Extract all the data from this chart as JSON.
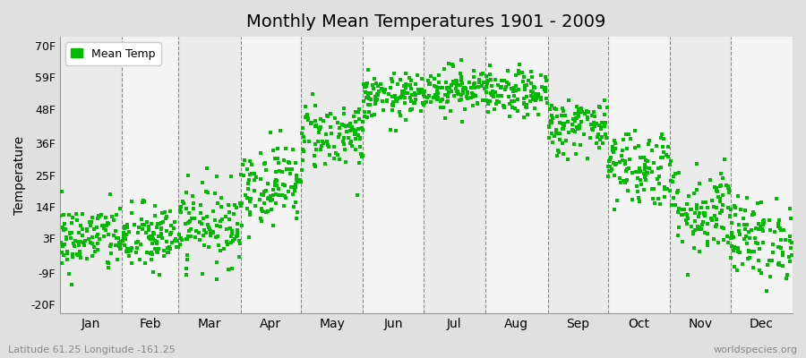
{
  "title": "Monthly Mean Temperatures 1901 - 2009",
  "ylabel": "Temperature",
  "xlabel_labels": [
    "Jan",
    "Feb",
    "Mar",
    "Apr",
    "May",
    "Jun",
    "Jul",
    "Aug",
    "Sep",
    "Oct",
    "Nov",
    "Dec"
  ],
  "ytick_labels": [
    "-20F",
    "-9F",
    "3F",
    "14F",
    "25F",
    "36F",
    "48F",
    "59F",
    "70F"
  ],
  "ytick_values": [
    -20,
    -9,
    3,
    14,
    25,
    36,
    48,
    59,
    70
  ],
  "ylim": [
    -23,
    73
  ],
  "dot_color": "#00BB00",
  "bg_color": "#E0E0E0",
  "plot_bg_color": "#F0F0F0",
  "legend_label": "Mean Temp",
  "footer_left": "Latitude 61.25 Longitude -161.25",
  "footer_right": "worldspecies.org",
  "month_means": [
    3,
    3,
    8,
    22,
    39,
    52,
    55,
    53,
    42,
    28,
    13,
    3
  ],
  "month_stds": [
    6,
    6,
    7,
    7,
    6,
    4,
    4,
    4,
    5,
    7,
    8,
    7
  ],
  "n_points": 109,
  "month_days": [
    31,
    28,
    31,
    30,
    31,
    30,
    31,
    31,
    30,
    31,
    30,
    31
  ],
  "dot_size": 5
}
